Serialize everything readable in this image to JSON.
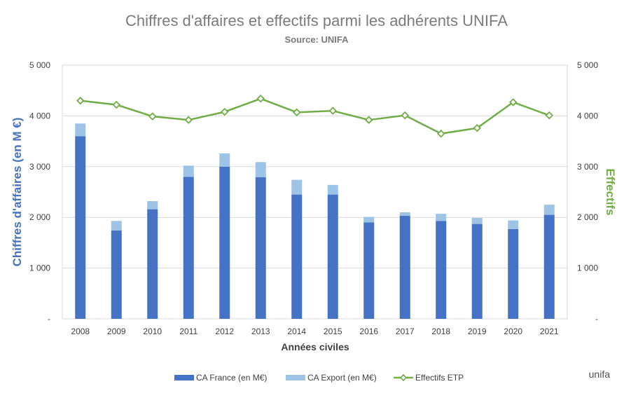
{
  "chart_data": {
    "type": "bar",
    "title": "Chiffres d'affaires et effectifs parmi les adhérents UNIFA",
    "subtitle": "Source: UNIFA",
    "xlabel": "Années civiles",
    "ylabel": "Chiffres d'affaires (en M €)",
    "y2label": "Effectifs",
    "categories": [
      "2008",
      "2009",
      "2010",
      "2011",
      "2012",
      "2013",
      "2014",
      "2015",
      "2016",
      "2017",
      "2018",
      "2019",
      "2020",
      "2021"
    ],
    "ylim": [
      0,
      5000
    ],
    "y2lim": [
      0,
      5000
    ],
    "yticks": [
      "-",
      "1 000",
      "2 000",
      "3 000",
      "4 000",
      "5 000"
    ],
    "y2ticks": [
      "-",
      "1 000",
      "2 000",
      "3 000",
      "4 000",
      "5 000"
    ],
    "stacked": true,
    "grid": true,
    "legend_position": "bottom",
    "series": [
      {
        "name": "CA France (en M€)",
        "type": "bar",
        "axis": "left",
        "color": "#4472C4",
        "values": [
          3600,
          1740,
          2160,
          2800,
          3000,
          2790,
          2450,
          2450,
          1900,
          2030,
          1930,
          1870,
          1770,
          2050
        ]
      },
      {
        "name": "CA Export (en M€)",
        "type": "bar",
        "axis": "left",
        "color": "#9DC3E6",
        "values": [
          250,
          190,
          160,
          220,
          260,
          300,
          290,
          190,
          110,
          70,
          140,
          120,
          170,
          200
        ]
      },
      {
        "name": "Effectifs ETP",
        "type": "line",
        "axis": "right",
        "color": "#70AD47",
        "values": [
          4300,
          4220,
          3990,
          3920,
          4080,
          4340,
          4070,
          4100,
          3920,
          4010,
          3650,
          3760,
          4270,
          4010
        ]
      }
    ]
  },
  "footer": {
    "brand": "unifa"
  },
  "colors": {
    "left_axis_label": "#4472C4",
    "right_axis_label": "#70AD47",
    "title": "#7a7a7a"
  }
}
